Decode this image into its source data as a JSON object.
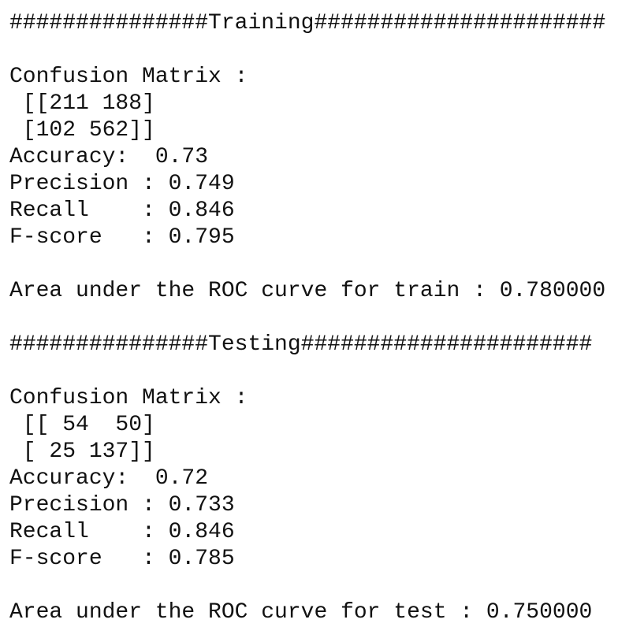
{
  "sections": [
    {
      "header": "###############Training######################",
      "lines": [
        "Confusion Matrix :",
        " [[211 188]",
        " [102 562]]",
        "Accuracy:  0.73",
        "Precision : 0.749",
        "Recall    : 0.846",
        "F-score   : 0.795"
      ],
      "auc": "Area under the ROC curve for train : 0.780000"
    },
    {
      "header": "###############Testing######################",
      "lines": [
        "Confusion Matrix :",
        " [[ 54  50]",
        " [ 25 137]]",
        "Accuracy:  0.72",
        "Precision : 0.733",
        "Recall    : 0.846",
        "F-score   : 0.785"
      ],
      "auc": "Area under the ROC curve for test : 0.750000"
    }
  ]
}
